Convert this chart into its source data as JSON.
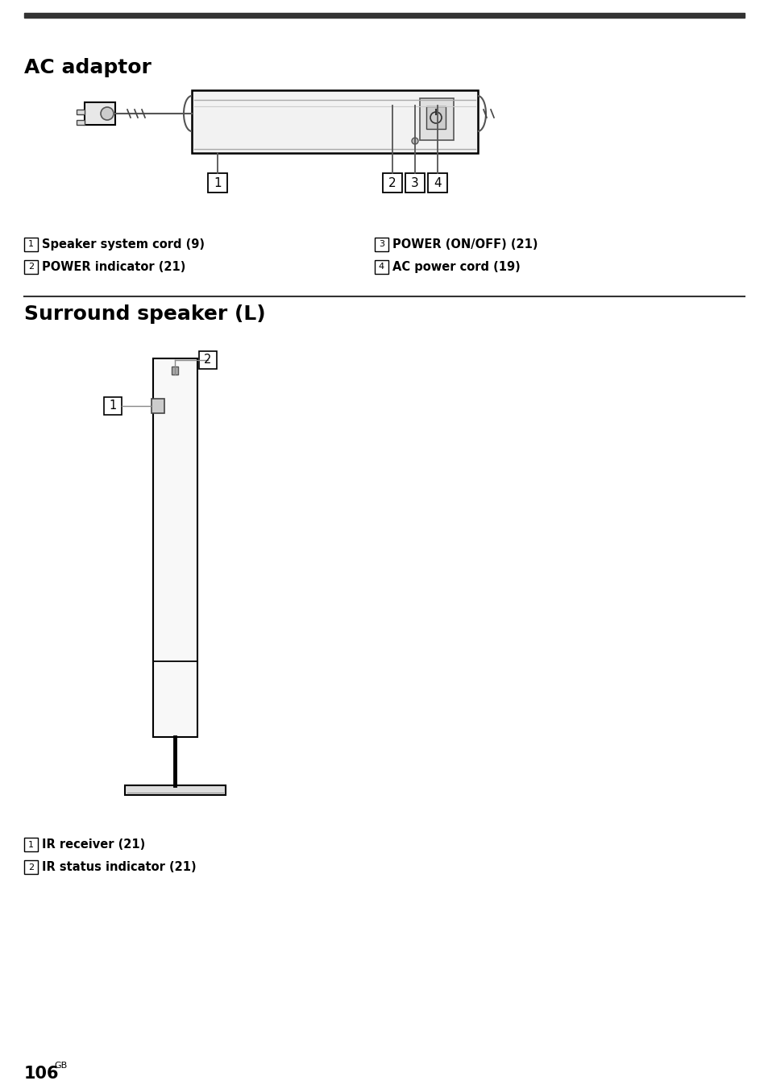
{
  "bg_color": "#ffffff",
  "title1": "AC adaptor",
  "title2": "Surround speaker (L)",
  "page_number": "106",
  "page_suffix": "GB",
  "top_line_color": "#555555",
  "section_line_color": "#555555",
  "label_items_ac": [
    {
      "num": "1",
      "text": "Speaker system cord (9)",
      "col": 0
    },
    {
      "num": "2",
      "text": "POWER indicator (21)",
      "col": 0
    },
    {
      "num": "3",
      "text": "POWER (ON/OFF) (21)",
      "col": 1
    },
    {
      "num": "4",
      "text": "AC power cord (19)",
      "col": 1
    }
  ],
  "label_items_surround": [
    {
      "num": "1",
      "text": "IR receiver (21)"
    },
    {
      "num": "2",
      "text": "IR status indicator (21)"
    }
  ]
}
